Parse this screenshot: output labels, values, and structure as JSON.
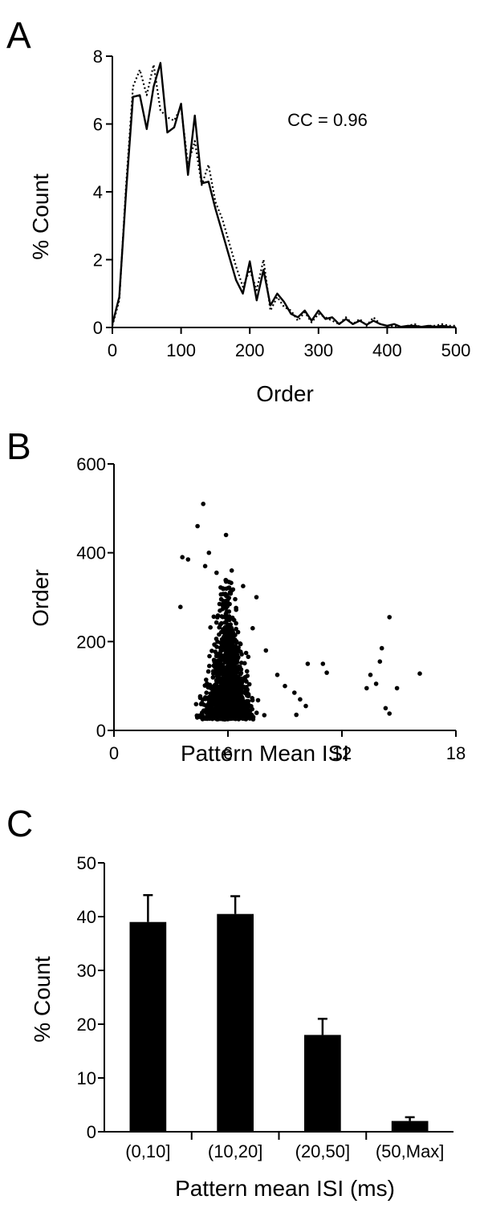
{
  "chart_data": [
    {
      "panel": "A",
      "type": "line",
      "xlabel": "Order",
      "ylabel": "% Count",
      "xlim": [
        0,
        500
      ],
      "ylim": [
        0,
        8
      ],
      "xticks": [
        0,
        100,
        200,
        300,
        400,
        500
      ],
      "yticks": [
        0,
        2,
        4,
        6,
        8
      ],
      "annotation": "CC = 0.96",
      "series": [
        {
          "style": "solid",
          "x": [
            0,
            10,
            20,
            30,
            40,
            50,
            60,
            70,
            80,
            90,
            100,
            110,
            120,
            130,
            140,
            150,
            160,
            170,
            180,
            190,
            200,
            210,
            220,
            230,
            240,
            250,
            260,
            270,
            280,
            290,
            300,
            310,
            320,
            330,
            340,
            350,
            360,
            370,
            380,
            390,
            400,
            410,
            420,
            430,
            440,
            450,
            460,
            470,
            480,
            490,
            500
          ],
          "y": [
            0.1,
            0.9,
            4.0,
            6.8,
            6.85,
            5.85,
            7.1,
            7.8,
            5.75,
            5.9,
            6.6,
            4.5,
            6.25,
            4.25,
            4.3,
            3.5,
            2.8,
            2.1,
            1.4,
            1.0,
            1.95,
            0.8,
            1.7,
            0.65,
            1.0,
            0.75,
            0.4,
            0.3,
            0.5,
            0.2,
            0.5,
            0.25,
            0.3,
            0.1,
            0.25,
            0.1,
            0.2,
            0.08,
            0.2,
            0.1,
            0.05,
            0.1,
            0.02,
            0.05,
            0.05,
            0.02,
            0.05,
            0.02,
            0.05,
            0.02,
            0.0
          ]
        },
        {
          "style": "dotted",
          "x": [
            0,
            10,
            20,
            30,
            40,
            50,
            60,
            70,
            80,
            90,
            100,
            110,
            120,
            130,
            140,
            150,
            160,
            170,
            180,
            190,
            200,
            210,
            220,
            230,
            240,
            250,
            260,
            270,
            280,
            290,
            300,
            310,
            320,
            330,
            340,
            350,
            360,
            370,
            380,
            390,
            400,
            410,
            420,
            430,
            440,
            450,
            460,
            470,
            480,
            490,
            500
          ],
          "y": [
            0.05,
            0.8,
            4.2,
            7.1,
            7.6,
            6.85,
            7.75,
            6.4,
            6.2,
            6.1,
            6.5,
            4.8,
            5.5,
            4.2,
            4.8,
            3.7,
            3.2,
            2.5,
            1.8,
            1.2,
            1.7,
            1.1,
            2.0,
            0.5,
            0.9,
            0.6,
            0.5,
            0.2,
            0.45,
            0.15,
            0.4,
            0.3,
            0.2,
            0.1,
            0.3,
            0.1,
            0.25,
            0.05,
            0.3,
            0.1,
            0.05,
            0.05,
            0.0,
            0.05,
            0.1,
            0.0,
            0.05,
            0.05,
            0.1,
            0.05,
            0.05
          ]
        }
      ]
    },
    {
      "panel": "B",
      "type": "scatter",
      "xlabel": "Pattern Mean ISI",
      "ylabel": "Order",
      "xlim": [
        0,
        18
      ],
      "ylim": [
        0,
        600
      ],
      "xticks": [
        0,
        6,
        12,
        18
      ],
      "yticks": [
        0,
        200,
        400,
        600
      ],
      "cluster": {
        "x_center": 6.0,
        "x_spread": 1.1,
        "y_mode": 95,
        "count": 1400
      },
      "points": [
        [
          4.7,
          510
        ],
        [
          4.4,
          460
        ],
        [
          5.9,
          440
        ],
        [
          3.6,
          390
        ],
        [
          3.9,
          385
        ],
        [
          3.5,
          278
        ],
        [
          5.0,
          400
        ],
        [
          4.8,
          370
        ],
        [
          5.4,
          355
        ],
        [
          6.2,
          360
        ],
        [
          6.8,
          325
        ],
        [
          7.5,
          300
        ],
        [
          7.3,
          230
        ],
        [
          8.0,
          180
        ],
        [
          8.6,
          125
        ],
        [
          9.0,
          100
        ],
        [
          9.5,
          85
        ],
        [
          9.8,
          70
        ],
        [
          10.2,
          150
        ],
        [
          10.1,
          55
        ],
        [
          9.6,
          35
        ],
        [
          11.0,
          150
        ],
        [
          11.2,
          130
        ],
        [
          13.5,
          125
        ],
        [
          13.3,
          95
        ],
        [
          13.8,
          105
        ],
        [
          14.0,
          155
        ],
        [
          14.1,
          185
        ],
        [
          14.5,
          255
        ],
        [
          14.3,
          50
        ],
        [
          14.5,
          38
        ],
        [
          14.9,
          95
        ],
        [
          16.1,
          128
        ]
      ]
    },
    {
      "panel": "C",
      "type": "bar",
      "xlabel": "Pattern mean ISI (ms)",
      "ylabel": "% Count",
      "ylim": [
        0,
        50
      ],
      "yticks": [
        0,
        10,
        20,
        30,
        40,
        50
      ],
      "categories": [
        "(0,10]",
        "(10,20]",
        "(20,50]",
        "(50,Max]"
      ],
      "values": [
        39,
        40.5,
        18,
        2
      ],
      "errors": [
        5,
        3.3,
        3,
        0.7
      ]
    }
  ],
  "panel_labels": {
    "a": "A",
    "b": "B",
    "c": "C"
  }
}
